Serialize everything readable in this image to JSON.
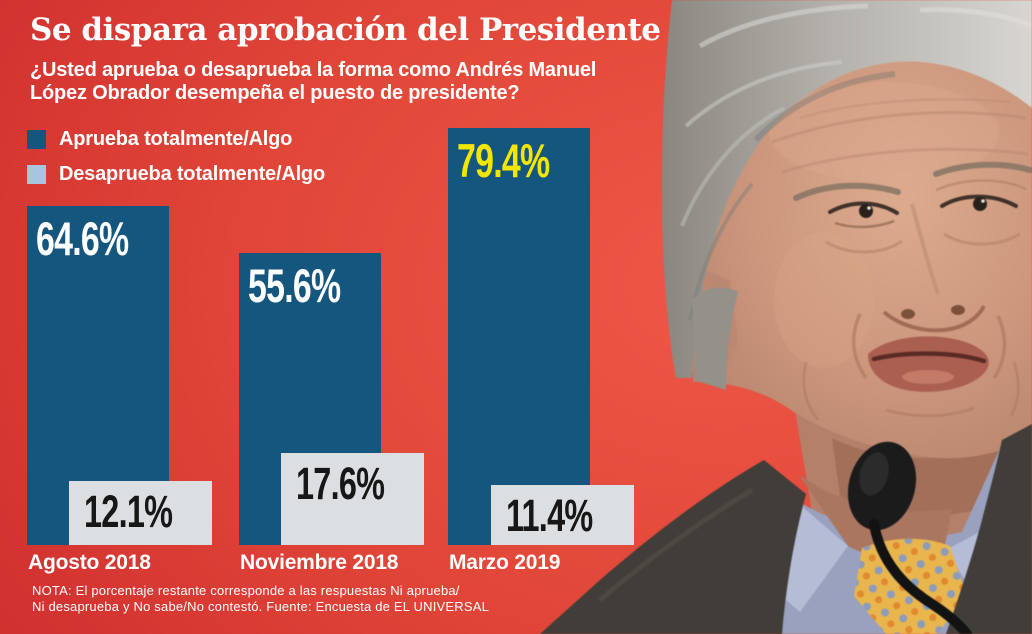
{
  "header": {
    "title": "Se dispara aprobación del Presidente",
    "subtitle_line1": "¿Usted aprueba o desaprueba la forma como Andrés Manuel",
    "subtitle_line2": "López Obrador desempeña el puesto de presidente?"
  },
  "legend": {
    "items": [
      {
        "label": "Aprueba totalmente/Algo",
        "color": "#15567f"
      },
      {
        "label": "Desaprueba totalmente/Algo",
        "color": "#a7c6dd"
      }
    ]
  },
  "chart_data": {
    "type": "bar",
    "title": "Se dispara aprobación del Presidente",
    "subtitle": "¿Usted aprueba o desaprueba la forma como Andrés Manuel López Obrador desempeña el puesto de presidente?",
    "categories": [
      "Agosto 2018",
      "Noviembre 2018",
      "Marzo 2019"
    ],
    "series": [
      {
        "name": "Aprueba totalmente/Algo",
        "values": [
          64.6,
          55.6,
          79.4
        ],
        "labels": [
          "64.6%",
          "55.6%",
          "79.4%"
        ],
        "color": "#15567f",
        "label_colors": [
          "#ffffff",
          "#ffffff",
          "#f3e600"
        ]
      },
      {
        "name": "Desaprueba totalmente/Algo",
        "values": [
          12.1,
          17.6,
          11.4
        ],
        "labels": [
          "12.1%",
          "17.6%",
          "11.4%"
        ],
        "color": "#dcdfe1",
        "label_colors": [
          "#171717",
          "#171717",
          "#171717"
        ]
      }
    ],
    "ylim": [
      0,
      100
    ],
    "grid": false,
    "legend_position": "top-left",
    "value_label_position": "inside-top-left",
    "note": "NOTA: El porcentaje restante corresponde a las respuestas Ni aprueba/ Ni desaprueba y No sabe/No contestó. Fuente: Encuesta de EL UNIVERSAL",
    "source": "Encuesta de EL UNIVERSAL"
  },
  "footer": {
    "note_line1": "NOTA: El porcentaje restante corresponde a las respuestas Ni aprueba/",
    "note_line2": "Ni desaprueba y No sabe/No contestó. Fuente: Encuesta de EL UNIVERSAL"
  },
  "colors": {
    "background_red_dark": "#c92b28",
    "background_red_bright": "#ee5747",
    "approve_blue": "#15567f",
    "disapprove_gray_bar": "#dcdfe1",
    "legend_light_blue": "#a7c6dd",
    "highlight_yellow": "#f3e600",
    "text_white": "#ffffff",
    "number_black": "#171717"
  }
}
